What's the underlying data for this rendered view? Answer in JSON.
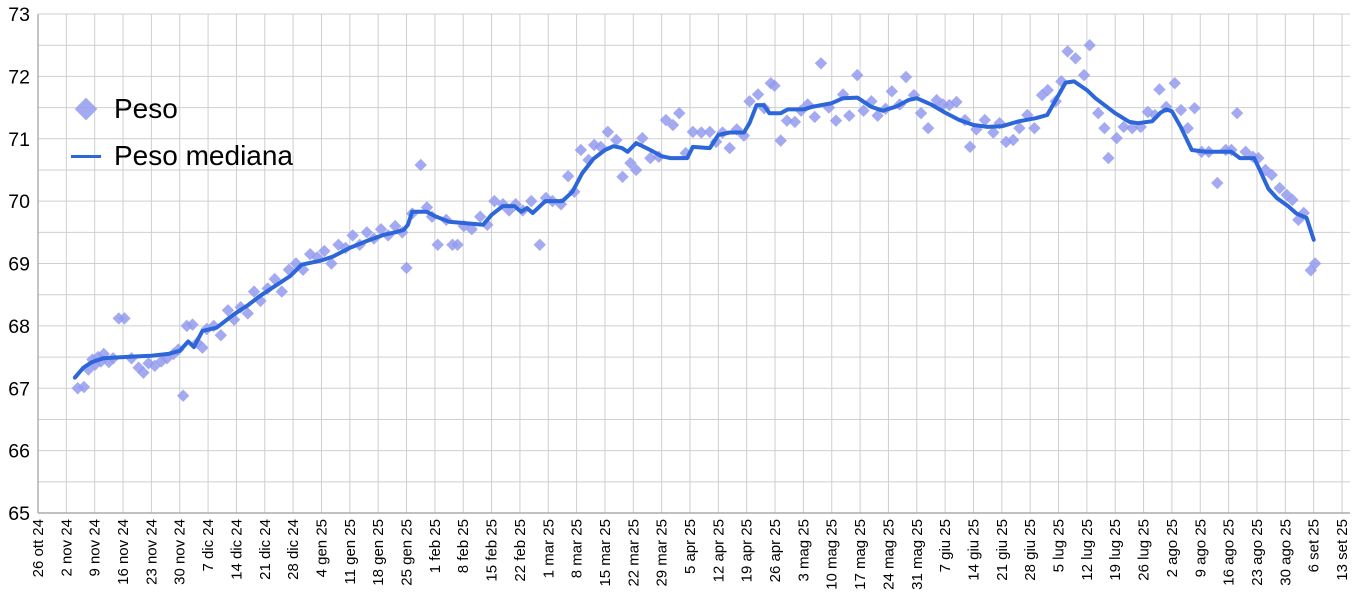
{
  "legend": {
    "peso_label": "Peso",
    "mediana_label": "Peso mediana"
  },
  "colors": {
    "scatter": "#939bef",
    "line": "#2c66d8",
    "grid": "#cfcfcf",
    "axis": "#ababab",
    "text": "#000000",
    "background": "#ffffff"
  },
  "chart_data": {
    "type": "scatter",
    "title": "",
    "xlabel": "",
    "ylabel": "",
    "ylim": [
      65,
      73
    ],
    "y_ticks": [
      65,
      66,
      67,
      68,
      69,
      70,
      71,
      72,
      73
    ],
    "y_minor_step": 0.5,
    "grid": true,
    "legend_position": "inside top-left",
    "x_unit": "weeks since 26 ott 24 (one tick per 7 days)",
    "x_tick_labels": [
      "26 ott 24",
      "2 nov 24",
      "9 nov 24",
      "16 nov 24",
      "23 nov 24",
      "30 nov 24",
      "7 dic 24",
      "14 dic 24",
      "21 dic 24",
      "28 dic 24",
      "4 gen 25",
      "11 gen 25",
      "18 gen 25",
      "25 gen 25",
      "1 feb 25",
      "8 feb 25",
      "15 feb 25",
      "22 feb 25",
      "1 mar 25",
      "8 mar 25",
      "15 mar 25",
      "22 mar 25",
      "29 mar 25",
      "5 apr 25",
      "12 apr 25",
      "19 apr 25",
      "26 apr 25",
      "3 mag 25",
      "10 mag 25",
      "17 mag 25",
      "24 mag 25",
      "31 mag 25",
      "7 giu 25",
      "14 giu 25",
      "21 giu 25",
      "28 giu 25",
      "5 lug 25",
      "12 lug 25",
      "19 lug 25",
      "26 lug 25",
      "2 ago 25",
      "9 ago 25",
      "16 ago 25",
      "23 ago 25",
      "30 ago 25",
      "6 set 25",
      "13 set 25"
    ],
    "series": [
      {
        "name": "Peso",
        "type": "scatter",
        "marker": "diamond",
        "points": [
          [
            1.4,
            67.0
          ],
          [
            1.62,
            67.02
          ],
          [
            1.78,
            67.3
          ],
          [
            1.92,
            67.46
          ],
          [
            2.02,
            67.38
          ],
          [
            2.12,
            67.5
          ],
          [
            2.22,
            67.43
          ],
          [
            2.32,
            67.55
          ],
          [
            2.5,
            67.42
          ],
          [
            2.65,
            67.48
          ],
          [
            2.85,
            68.12
          ],
          [
            3.05,
            68.12
          ],
          [
            3.3,
            67.48
          ],
          [
            3.55,
            67.33
          ],
          [
            3.72,
            67.25
          ],
          [
            3.9,
            67.4
          ],
          [
            4.12,
            67.36
          ],
          [
            4.35,
            67.43
          ],
          [
            4.55,
            67.48
          ],
          [
            4.78,
            67.55
          ],
          [
            4.95,
            67.62
          ],
          [
            5.12,
            66.88
          ],
          [
            5.25,
            68.0
          ],
          [
            5.45,
            68.02
          ],
          [
            5.62,
            67.73
          ],
          [
            5.8,
            67.65
          ],
          [
            5.95,
            67.95
          ],
          [
            6.2,
            68.0
          ],
          [
            6.45,
            67.85
          ],
          [
            6.7,
            68.25
          ],
          [
            6.92,
            68.1
          ],
          [
            7.15,
            68.3
          ],
          [
            7.4,
            68.2
          ],
          [
            7.62,
            68.55
          ],
          [
            7.85,
            68.4
          ],
          [
            8.1,
            68.6
          ],
          [
            8.35,
            68.75
          ],
          [
            8.6,
            68.55
          ],
          [
            8.85,
            68.9
          ],
          [
            9.1,
            69.0
          ],
          [
            9.35,
            68.9
          ],
          [
            9.6,
            69.15
          ],
          [
            9.85,
            69.1
          ],
          [
            10.1,
            69.2
          ],
          [
            10.35,
            69.0
          ],
          [
            10.6,
            69.3
          ],
          [
            10.85,
            69.25
          ],
          [
            11.1,
            69.45
          ],
          [
            11.35,
            69.3
          ],
          [
            11.6,
            69.5
          ],
          [
            11.85,
            69.4
          ],
          [
            12.1,
            69.55
          ],
          [
            12.35,
            69.45
          ],
          [
            12.6,
            69.6
          ],
          [
            12.85,
            69.5
          ],
          [
            13.0,
            68.93
          ],
          [
            13.2,
            69.8
          ],
          [
            13.5,
            70.58
          ],
          [
            13.72,
            69.9
          ],
          [
            13.9,
            69.75
          ],
          [
            14.1,
            69.3
          ],
          [
            14.4,
            69.7
          ],
          [
            14.62,
            69.3
          ],
          [
            14.8,
            69.3
          ],
          [
            15.02,
            69.6
          ],
          [
            15.3,
            69.55
          ],
          [
            15.6,
            69.75
          ],
          [
            15.85,
            69.62
          ],
          [
            16.1,
            70.0
          ],
          [
            16.4,
            69.95
          ],
          [
            16.62,
            69.85
          ],
          [
            16.85,
            69.95
          ],
          [
            17.1,
            69.85
          ],
          [
            17.4,
            70.0
          ],
          [
            17.7,
            69.3
          ],
          [
            17.92,
            70.05
          ],
          [
            18.15,
            70.0
          ],
          [
            18.45,
            69.95
          ],
          [
            18.7,
            70.4
          ],
          [
            18.92,
            70.15
          ],
          [
            19.15,
            70.82
          ],
          [
            19.42,
            70.66
          ],
          [
            19.62,
            70.9
          ],
          [
            19.85,
            70.87
          ],
          [
            20.1,
            71.11
          ],
          [
            20.4,
            70.98
          ],
          [
            20.62,
            70.39
          ],
          [
            20.9,
            70.61
          ],
          [
            21.1,
            70.5
          ],
          [
            21.32,
            71.01
          ],
          [
            21.6,
            70.69
          ],
          [
            21.9,
            70.71
          ],
          [
            22.15,
            71.3
          ],
          [
            22.4,
            71.22
          ],
          [
            22.62,
            71.41
          ],
          [
            22.85,
            70.77
          ],
          [
            23.1,
            71.11
          ],
          [
            23.4,
            71.1
          ],
          [
            23.7,
            71.11
          ],
          [
            23.92,
            70.95
          ],
          [
            24.15,
            71.1
          ],
          [
            24.4,
            70.85
          ],
          [
            24.65,
            71.15
          ],
          [
            24.9,
            71.05
          ],
          [
            25.1,
            71.6
          ],
          [
            25.4,
            71.71
          ],
          [
            25.62,
            71.49
          ],
          [
            25.85,
            71.89
          ],
          [
            25.98,
            71.85
          ],
          [
            26.2,
            70.97
          ],
          [
            26.42,
            71.29
          ],
          [
            26.7,
            71.27
          ],
          [
            26.92,
            71.45
          ],
          [
            27.15,
            71.55
          ],
          [
            27.4,
            71.35
          ],
          [
            27.62,
            72.21
          ],
          [
            27.9,
            71.5
          ],
          [
            28.15,
            71.29
          ],
          [
            28.4,
            71.71
          ],
          [
            28.62,
            71.37
          ],
          [
            28.9,
            72.02
          ],
          [
            29.12,
            71.45
          ],
          [
            29.4,
            71.6
          ],
          [
            29.62,
            71.37
          ],
          [
            29.9,
            71.48
          ],
          [
            30.12,
            71.76
          ],
          [
            30.4,
            71.55
          ],
          [
            30.62,
            71.99
          ],
          [
            30.9,
            71.7
          ],
          [
            31.15,
            71.41
          ],
          [
            31.4,
            71.17
          ],
          [
            31.7,
            71.62
          ],
          [
            31.92,
            71.55
          ],
          [
            32.15,
            71.54
          ],
          [
            32.4,
            71.59
          ],
          [
            32.7,
            71.3
          ],
          [
            32.88,
            70.87
          ],
          [
            33.1,
            71.15
          ],
          [
            33.4,
            71.3
          ],
          [
            33.7,
            71.1
          ],
          [
            33.92,
            71.25
          ],
          [
            34.15,
            70.95
          ],
          [
            34.4,
            70.98
          ],
          [
            34.62,
            71.17
          ],
          [
            34.9,
            71.38
          ],
          [
            35.15,
            71.17
          ],
          [
            35.42,
            71.7
          ],
          [
            35.62,
            71.78
          ],
          [
            35.9,
            71.6
          ],
          [
            36.1,
            71.92
          ],
          [
            36.32,
            72.4
          ],
          [
            36.6,
            72.29
          ],
          [
            36.9,
            72.02
          ],
          [
            37.1,
            72.5
          ],
          [
            37.4,
            71.41
          ],
          [
            37.62,
            71.17
          ],
          [
            37.76,
            70.69
          ],
          [
            38.05,
            71.01
          ],
          [
            38.3,
            71.19
          ],
          [
            38.6,
            71.17
          ],
          [
            38.9,
            71.19
          ],
          [
            39.15,
            71.43
          ],
          [
            39.4,
            71.38
          ],
          [
            39.56,
            71.79
          ],
          [
            39.8,
            71.51
          ],
          [
            40.1,
            71.89
          ],
          [
            40.32,
            71.46
          ],
          [
            40.56,
            71.17
          ],
          [
            40.8,
            71.49
          ],
          [
            41.05,
            70.79
          ],
          [
            41.3,
            70.79
          ],
          [
            41.6,
            70.29
          ],
          [
            41.9,
            70.82
          ],
          [
            42.1,
            70.82
          ],
          [
            42.3,
            71.41
          ],
          [
            42.6,
            70.79
          ],
          [
            42.86,
            70.71
          ],
          [
            43.05,
            70.69
          ],
          [
            43.3,
            70.5
          ],
          [
            43.52,
            70.42
          ],
          [
            43.8,
            70.21
          ],
          [
            44.05,
            70.1
          ],
          [
            44.25,
            70.02
          ],
          [
            44.46,
            69.7
          ],
          [
            44.65,
            69.81
          ],
          [
            44.9,
            68.89
          ],
          [
            45.05,
            69.0
          ]
        ]
      },
      {
        "name": "Peso mediana",
        "type": "line",
        "points": [
          [
            1.3,
            67.17
          ],
          [
            1.6,
            67.33
          ],
          [
            1.9,
            67.42
          ],
          [
            2.3,
            67.48
          ],
          [
            3.0,
            67.5
          ],
          [
            3.5,
            67.51
          ],
          [
            4.0,
            67.52
          ],
          [
            4.6,
            67.55
          ],
          [
            5.0,
            67.6
          ],
          [
            5.3,
            67.75
          ],
          [
            5.5,
            67.66
          ],
          [
            5.8,
            67.92
          ],
          [
            6.3,
            67.97
          ],
          [
            6.9,
            68.18
          ],
          [
            7.4,
            68.33
          ],
          [
            7.8,
            68.47
          ],
          [
            8.4,
            68.65
          ],
          [
            8.9,
            68.8
          ],
          [
            9.3,
            68.98
          ],
          [
            10.0,
            69.05
          ],
          [
            10.4,
            69.11
          ],
          [
            11.0,
            69.25
          ],
          [
            11.6,
            69.36
          ],
          [
            12.2,
            69.46
          ],
          [
            12.6,
            69.5
          ],
          [
            12.9,
            69.54
          ],
          [
            13.05,
            69.62
          ],
          [
            13.2,
            69.83
          ],
          [
            13.7,
            69.83
          ],
          [
            14.0,
            69.76
          ],
          [
            14.5,
            69.67
          ],
          [
            15.0,
            69.65
          ],
          [
            15.7,
            69.62
          ],
          [
            16.0,
            69.78
          ],
          [
            16.4,
            69.92
          ],
          [
            16.8,
            69.92
          ],
          [
            17.05,
            69.83
          ],
          [
            17.25,
            69.89
          ],
          [
            17.45,
            69.81
          ],
          [
            17.9,
            70.0
          ],
          [
            18.5,
            70.0
          ],
          [
            18.85,
            70.15
          ],
          [
            19.2,
            70.45
          ],
          [
            19.6,
            70.68
          ],
          [
            20.0,
            70.82
          ],
          [
            20.3,
            70.88
          ],
          [
            20.6,
            70.85
          ],
          [
            20.8,
            70.79
          ],
          [
            21.1,
            70.93
          ],
          [
            21.6,
            70.82
          ],
          [
            22.0,
            70.72
          ],
          [
            22.3,
            70.69
          ],
          [
            22.9,
            70.69
          ],
          [
            23.1,
            70.87
          ],
          [
            23.7,
            70.85
          ],
          [
            24.0,
            71.06
          ],
          [
            24.4,
            71.1
          ],
          [
            24.9,
            71.1
          ],
          [
            25.1,
            71.25
          ],
          [
            25.35,
            71.54
          ],
          [
            25.6,
            71.54
          ],
          [
            25.8,
            71.41
          ],
          [
            26.2,
            71.41
          ],
          [
            26.45,
            71.47
          ],
          [
            27.0,
            71.47
          ],
          [
            27.3,
            71.51
          ],
          [
            28.0,
            71.57
          ],
          [
            28.4,
            71.65
          ],
          [
            28.9,
            71.66
          ],
          [
            29.4,
            71.51
          ],
          [
            29.8,
            71.45
          ],
          [
            30.3,
            71.52
          ],
          [
            30.7,
            71.62
          ],
          [
            31.0,
            71.65
          ],
          [
            31.5,
            71.55
          ],
          [
            32.0,
            71.42
          ],
          [
            32.5,
            71.3
          ],
          [
            33.0,
            71.22
          ],
          [
            33.5,
            71.19
          ],
          [
            34.0,
            71.2
          ],
          [
            34.6,
            71.28
          ],
          [
            35.2,
            71.33
          ],
          [
            35.6,
            71.38
          ],
          [
            36.0,
            71.7
          ],
          [
            36.25,
            71.9
          ],
          [
            36.55,
            71.92
          ],
          [
            37.0,
            71.78
          ],
          [
            37.3,
            71.65
          ],
          [
            38.0,
            71.41
          ],
          [
            38.5,
            71.27
          ],
          [
            38.8,
            71.25
          ],
          [
            39.3,
            71.28
          ],
          [
            39.6,
            71.42
          ],
          [
            39.8,
            71.47
          ],
          [
            40.0,
            71.44
          ],
          [
            40.3,
            71.2
          ],
          [
            40.7,
            70.82
          ],
          [
            41.2,
            70.79
          ],
          [
            42.1,
            70.79
          ],
          [
            42.4,
            70.69
          ],
          [
            42.9,
            70.69
          ],
          [
            43.1,
            70.5
          ],
          [
            43.4,
            70.2
          ],
          [
            43.7,
            70.05
          ],
          [
            44.1,
            69.92
          ],
          [
            44.4,
            69.8
          ],
          [
            44.75,
            69.73
          ],
          [
            45.0,
            69.38
          ]
        ]
      }
    ]
  }
}
